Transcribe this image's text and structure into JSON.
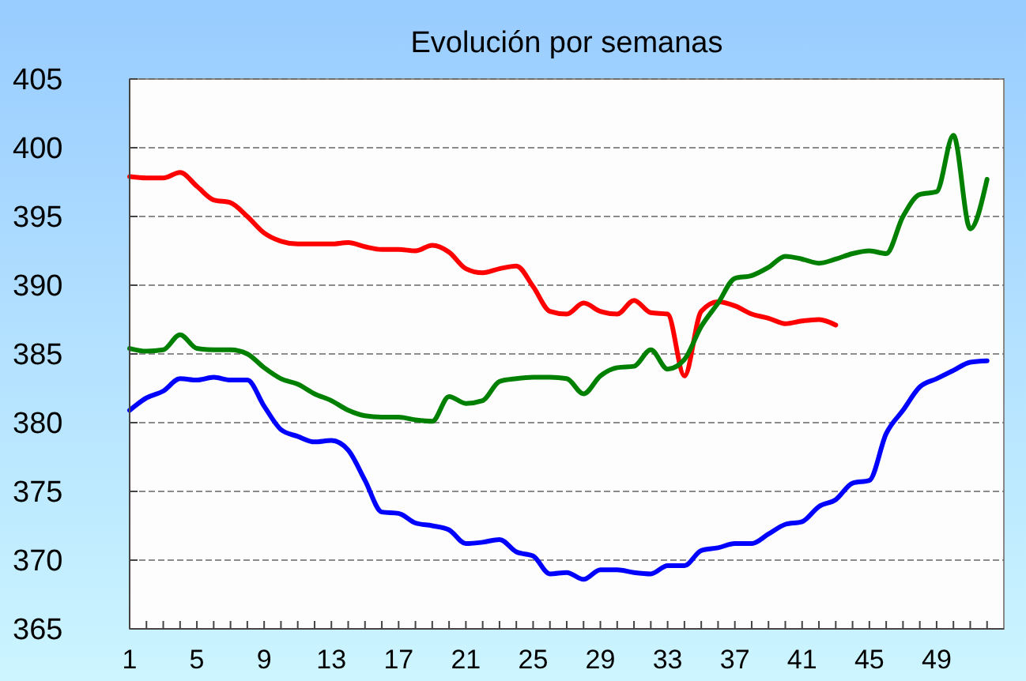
{
  "chart_data": {
    "type": "line",
    "title": "Evolución por semanas",
    "x": [
      1,
      2,
      3,
      4,
      5,
      6,
      7,
      8,
      9,
      10,
      11,
      12,
      13,
      14,
      15,
      16,
      17,
      18,
      19,
      20,
      21,
      22,
      23,
      24,
      25,
      26,
      27,
      28,
      29,
      30,
      31,
      32,
      33,
      34,
      35,
      36,
      37,
      38,
      39,
      40,
      41,
      42,
      43,
      44,
      45,
      46,
      47,
      48,
      49,
      50,
      51,
      52
    ],
    "xlim": [
      1,
      53
    ],
    "xticks": [
      1,
      {
        "value": 2,
        "label": null
      },
      {
        "value": 3,
        "label": null
      },
      {
        "value": 4,
        "label": null
      },
      5,
      {
        "value": 6,
        "label": null
      },
      {
        "value": 7,
        "label": null
      },
      {
        "value": 8,
        "label": null
      },
      9,
      {
        "value": 10,
        "label": null
      },
      {
        "value": 11,
        "label": null
      },
      {
        "value": 12,
        "label": null
      },
      13,
      {
        "value": 14,
        "label": null
      },
      {
        "value": 15,
        "label": null
      },
      {
        "value": 16,
        "label": null
      },
      17,
      {
        "value": 18,
        "label": null
      },
      {
        "value": 19,
        "label": null
      },
      {
        "value": 20,
        "label": null
      },
      21,
      {
        "value": 22,
        "label": null
      },
      {
        "value": 23,
        "label": null
      },
      {
        "value": 24,
        "label": null
      },
      25,
      {
        "value": 26,
        "label": null
      },
      {
        "value": 27,
        "label": null
      },
      {
        "value": 28,
        "label": null
      },
      29,
      {
        "value": 30,
        "label": null
      },
      {
        "value": 31,
        "label": null
      },
      {
        "value": 32,
        "label": null
      },
      33,
      {
        "value": 34,
        "label": null
      },
      {
        "value": 35,
        "label": null
      },
      {
        "value": 36,
        "label": null
      },
      37,
      {
        "value": 38,
        "label": null
      },
      {
        "value": 39,
        "label": null
      },
      {
        "value": 40,
        "label": null
      },
      41,
      {
        "value": 42,
        "label": null
      },
      {
        "value": 43,
        "label": null
      },
      {
        "value": 44,
        "label": null
      },
      45,
      {
        "value": 46,
        "label": null
      },
      {
        "value": 47,
        "label": null
      },
      {
        "value": 48,
        "label": null
      },
      49,
      {
        "value": 50,
        "label": null
      },
      {
        "value": 51,
        "label": null
      },
      {
        "value": 52,
        "label": null
      }
    ],
    "ylim": [
      365,
      405
    ],
    "yticks": [
      365,
      370,
      375,
      380,
      385,
      390,
      395,
      400,
      405
    ],
    "grid": "y",
    "marker": "none",
    "line_style": "solid",
    "series": [
      {
        "color": "#ff0000",
        "values": [
          397.9,
          397.8,
          397.8,
          398.2,
          397.2,
          396.2,
          396,
          395,
          393.8,
          393.2,
          393,
          393,
          393,
          393.1,
          392.8,
          392.6,
          392.6,
          392.5,
          392.9,
          392.4,
          391.2,
          390.9,
          391.2,
          391.4,
          389.9,
          388.1,
          387.9,
          388.7,
          388.1,
          387.9,
          388.9,
          388,
          387.9,
          383.4,
          388.1,
          388.8,
          388.5,
          387.9,
          387.6,
          387.2,
          387.4,
          387.5,
          387.1,
          null,
          null,
          null,
          null,
          null,
          null,
          null,
          null,
          null
        ]
      },
      {
        "color": "#008000",
        "values": [
          385.4,
          385.2,
          385.3,
          386.4,
          385.4,
          385.3,
          385.3,
          385,
          384,
          383.2,
          382.8,
          382.1,
          381.6,
          380.9,
          380.5,
          380.4,
          380.4,
          380.2,
          380.1,
          381.9,
          381.4,
          381.6,
          383,
          383.2,
          383.3,
          383.3,
          383.2,
          382.1,
          383.4,
          384,
          384.1,
          385.3,
          383.9,
          384.6,
          387,
          388.7,
          390.5,
          390.7,
          391.3,
          392.1,
          391.9,
          391.6,
          391.9,
          392.3,
          392.5,
          392.3,
          395,
          396.6,
          396.8,
          400.9,
          394.1,
          397.7
        ]
      },
      {
        "color": "#0000ff",
        "values": [
          380.9,
          381.8,
          382.3,
          383.2,
          383.1,
          383.3,
          383.1,
          383.1,
          381.2,
          379.5,
          379,
          378.6,
          378.7,
          378,
          375.8,
          373.5,
          373.4,
          372.7,
          372.5,
          372.2,
          371.2,
          371.3,
          371.5,
          370.6,
          370.3,
          369,
          369.1,
          368.6,
          369.3,
          369.3,
          369.1,
          369,
          369.6,
          369.6,
          370.7,
          370.9,
          371.2,
          371.2,
          371.9,
          372.6,
          372.8,
          373.9,
          374.4,
          375.6,
          375.8,
          379.2,
          380.9,
          382.6,
          383.2,
          383.8,
          384.4,
          384.5
        ]
      }
    ]
  }
}
